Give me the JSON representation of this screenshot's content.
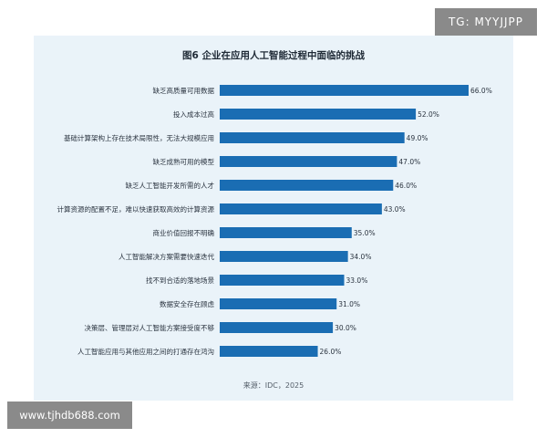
{
  "watermarks": {
    "top_right": "TG: MYYJJPP",
    "bottom_left": "www.tjhdb688.com"
  },
  "chart_data": {
    "type": "bar",
    "orientation": "horizontal",
    "title": "图6 企业在应用人工智能过程中面临的挑战",
    "source": "来源：IDC，2025",
    "xlim": [
      0,
      66
    ],
    "grid": false,
    "bar_color": "#1a6db3",
    "categories": [
      "缺乏高质量可用数据",
      "投入成本过高",
      "基础计算架构上存在技术局限性，无法大规模应用",
      "缺乏成熟可用的模型",
      "缺乏人工智能开发所需的人才",
      "计算资源的配置不足，难以快速获取高效的计算资源",
      "商业价值回报不明确",
      "人工智能解决方案需要快速迭代",
      "找不到合适的落地场景",
      "数据安全存在顾虑",
      "决策层、管理层对人工智能方案接受度不够",
      "人工智能应用与其他应用之间的打通存在鸿沟"
    ],
    "values": [
      66.0,
      52.0,
      49.0,
      47.0,
      46.0,
      43.0,
      35.0,
      34.0,
      33.0,
      31.0,
      30.0,
      26.0
    ],
    "value_labels": [
      "66.0%",
      "52.0%",
      "49.0%",
      "47.0%",
      "46.0%",
      "43.0%",
      "35.0%",
      "34.0%",
      "33.0%",
      "31.0%",
      "30.0%",
      "26.0%"
    ]
  }
}
